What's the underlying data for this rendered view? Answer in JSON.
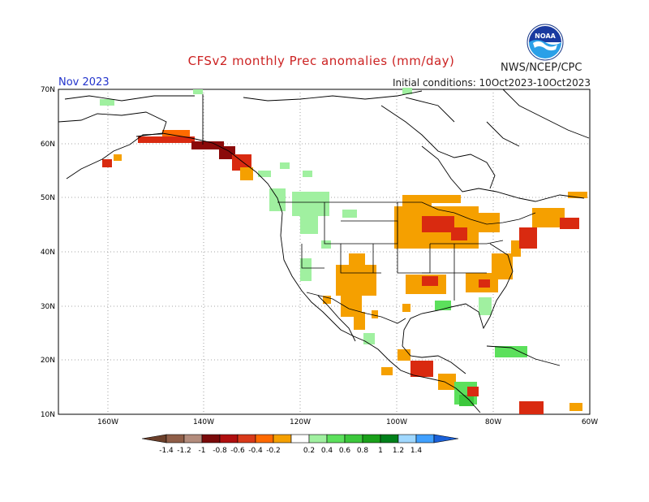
{
  "title": "CFSv2 monthly Prec anomalies (mm/day)",
  "month": "Nov 2023",
  "initial_conditions": "Initial conditions: 10Oct2023-10Oct2023",
  "agency": "NWS/NCEP/CPC",
  "logo_text": "NOAA",
  "lat_labels": [
    "70N",
    "60N",
    "50N",
    "40N",
    "30N",
    "20N",
    "10N"
  ],
  "lon_labels": [
    "160W",
    "140W",
    "120W",
    "100W",
    "80W",
    "60W"
  ],
  "colorbar": {
    "labels": [
      "-1.4",
      "-1.2",
      "-1",
      "-0.8",
      "-0.6",
      "-0.4",
      "-0.2",
      "0.2",
      "0.4",
      "0.6",
      "0.8",
      "1",
      "1.2",
      "1.4"
    ],
    "colors": [
      "#6b3f2a",
      "#8f5e48",
      "#b38c7c",
      "#7a0a0a",
      "#b00f0f",
      "#d93a1a",
      "#ff6a00",
      "#f5a000",
      "#ffffff",
      "#a0f0a0",
      "#5ce05c",
      "#3cc83c",
      "#1aa01a",
      "#00801a",
      "#a0d8ff",
      "#40a0ff",
      "#1a60d8"
    ]
  },
  "colors": {
    "coast": "#000000",
    "grid": "#888888",
    "neg_light": "#f5a000",
    "neg_mid": "#ff6a00",
    "neg_strong": "#d92a10",
    "neg_dark": "#8b0a0a",
    "pos_light": "#a0f0a0",
    "pos_mid": "#5ce05c"
  }
}
